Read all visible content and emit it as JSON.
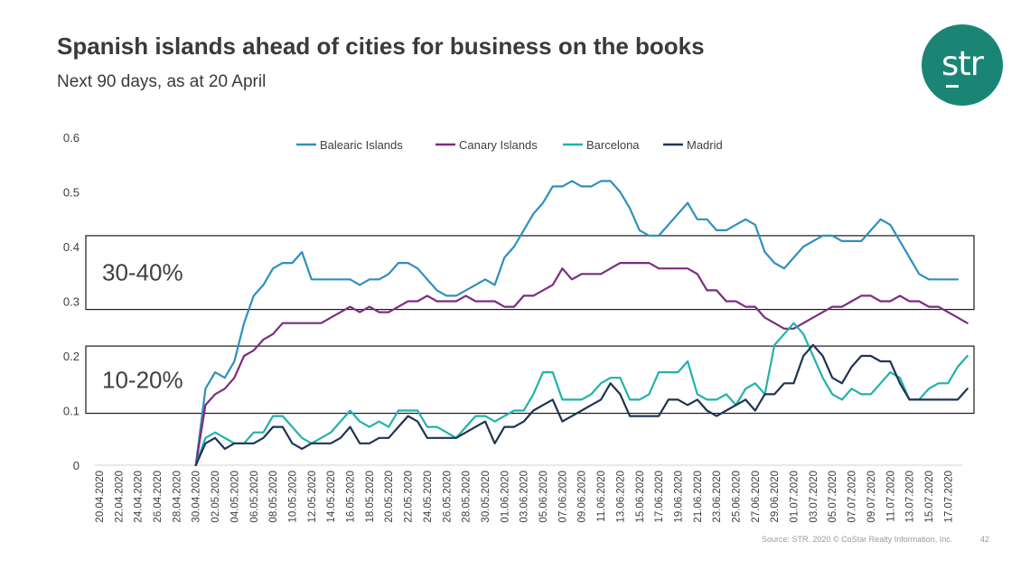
{
  "slide": {
    "title": "Spanish islands ahead of cities for business on the books",
    "subtitle": "Next 90 days, as at 20 April",
    "source": "Source: STR. 2020 © CoStar Realty Information, Inc.",
    "page_number": "42",
    "logo_text": "str",
    "logo_color": "#1a8575"
  },
  "chart_data": {
    "type": "line",
    "title": "Spanish islands ahead of cities for business on the books",
    "xlabel": "",
    "ylabel": "",
    "ylim": [
      0,
      0.6
    ],
    "yticks": [
      "0",
      "0.1",
      "0.2",
      "0.3",
      "0.4",
      "0.5",
      "0.6"
    ],
    "grid": false,
    "legend_position": "top",
    "x_labels": [
      "20.04.2020",
      "22.04.2020",
      "24.04.2020",
      "26.04.2020",
      "28.04.2020",
      "30.04.2020",
      "02.05.2020",
      "04.05.2020",
      "06.05.2020",
      "08.05.2020",
      "10.05.2020",
      "12.05.2020",
      "14.05.2020",
      "16.05.2020",
      "18.05.2020",
      "20.05.2020",
      "22.05.2020",
      "24.05.2020",
      "26.05.2020",
      "28.05.2020",
      "30.05.2020",
      "01.06.2020",
      "03.06.2020",
      "05.06.2020",
      "07.06.2020",
      "09.06.2020",
      "11.06.2020",
      "13.06.2020",
      "15.06.2020",
      "17.06.2020",
      "19.06.2020",
      "21.06.2020",
      "23.06.2020",
      "25.06.2020",
      "27.06.2020",
      "29.06.2020",
      "01.07.2020",
      "03.07.2020",
      "05.07.2020",
      "07.07.2020",
      "09.07.2020",
      "11.07.2020",
      "13.07.2020",
      "15.07.2020",
      "17.07.2020"
    ],
    "series": [
      {
        "name": "Balearic Islands",
        "color": "#2f8fbf",
        "values": [
          null,
          null,
          null,
          null,
          null,
          null,
          null,
          null,
          null,
          null,
          0,
          0.14,
          0.17,
          0.16,
          0.19,
          0.26,
          0.31,
          0.33,
          0.36,
          0.37,
          0.37,
          0.39,
          0.34,
          0.34,
          0.34,
          0.34,
          0.34,
          0.33,
          0.34,
          0.34,
          0.35,
          0.37,
          0.37,
          0.36,
          0.34,
          0.32,
          0.31,
          0.31,
          0.32,
          0.33,
          0.34,
          0.33,
          0.38,
          0.4,
          0.43,
          0.46,
          0.48,
          0.51,
          0.51,
          0.52,
          0.51,
          0.51,
          0.52,
          0.52,
          0.5,
          0.47,
          0.43,
          0.42,
          0.42,
          0.44,
          0.46,
          0.48,
          0.45,
          0.45,
          0.43,
          0.43,
          0.44,
          0.45,
          0.44,
          0.39,
          0.37,
          0.36,
          0.38,
          0.4,
          0.41,
          0.42,
          0.42,
          0.41,
          0.41,
          0.41,
          0.43,
          0.45,
          0.44,
          0.41,
          0.38,
          0.35,
          0.34,
          0.34,
          0.34,
          0.34
        ]
      },
      {
        "name": "Canary Islands",
        "color": "#7b2d7f",
        "values": [
          null,
          null,
          null,
          null,
          null,
          null,
          null,
          null,
          null,
          null,
          0,
          0.11,
          0.13,
          0.14,
          0.16,
          0.2,
          0.21,
          0.23,
          0.24,
          0.26,
          0.26,
          0.26,
          0.26,
          0.26,
          0.27,
          0.28,
          0.29,
          0.28,
          0.29,
          0.28,
          0.28,
          0.29,
          0.3,
          0.3,
          0.31,
          0.3,
          0.3,
          0.3,
          0.31,
          0.3,
          0.3,
          0.3,
          0.29,
          0.29,
          0.31,
          0.31,
          0.32,
          0.33,
          0.36,
          0.34,
          0.35,
          0.35,
          0.35,
          0.36,
          0.37,
          0.37,
          0.37,
          0.37,
          0.36,
          0.36,
          0.36,
          0.36,
          0.35,
          0.32,
          0.32,
          0.3,
          0.3,
          0.29,
          0.29,
          0.27,
          0.26,
          0.25,
          0.25,
          0.26,
          0.27,
          0.28,
          0.29,
          0.29,
          0.3,
          0.31,
          0.31,
          0.3,
          0.3,
          0.31,
          0.3,
          0.3,
          0.29,
          0.29,
          0.28,
          0.27,
          0.26
        ]
      },
      {
        "name": "Barcelona",
        "color": "#20b2aa",
        "values": [
          null,
          null,
          null,
          null,
          null,
          null,
          null,
          null,
          null,
          null,
          0,
          0.05,
          0.06,
          0.05,
          0.04,
          0.04,
          0.06,
          0.06,
          0.09,
          0.09,
          0.07,
          0.05,
          0.04,
          0.05,
          0.06,
          0.08,
          0.1,
          0.08,
          0.07,
          0.08,
          0.07,
          0.1,
          0.1,
          0.1,
          0.07,
          0.07,
          0.06,
          0.05,
          0.07,
          0.09,
          0.09,
          0.08,
          0.09,
          0.1,
          0.1,
          0.13,
          0.17,
          0.17,
          0.12,
          0.12,
          0.12,
          0.13,
          0.15,
          0.16,
          0.16,
          0.12,
          0.12,
          0.13,
          0.17,
          0.17,
          0.17,
          0.19,
          0.13,
          0.12,
          0.12,
          0.13,
          0.11,
          0.14,
          0.15,
          0.13,
          0.22,
          0.24,
          0.26,
          0.24,
          0.2,
          0.16,
          0.13,
          0.12,
          0.14,
          0.13,
          0.13,
          0.15,
          0.17,
          0.16,
          0.12,
          0.12,
          0.14,
          0.15,
          0.15,
          0.18,
          0.2
        ]
      },
      {
        "name": "Madrid",
        "color": "#1f3354",
        "values": [
          null,
          null,
          null,
          null,
          null,
          null,
          null,
          null,
          null,
          null,
          0,
          0.04,
          0.05,
          0.03,
          0.04,
          0.04,
          0.04,
          0.05,
          0.07,
          0.07,
          0.04,
          0.03,
          0.04,
          0.04,
          0.04,
          0.05,
          0.07,
          0.04,
          0.04,
          0.05,
          0.05,
          0.07,
          0.09,
          0.08,
          0.05,
          0.05,
          0.05,
          0.05,
          0.06,
          0.07,
          0.08,
          0.04,
          0.07,
          0.07,
          0.08,
          0.1,
          0.11,
          0.12,
          0.08,
          0.09,
          0.1,
          0.11,
          0.12,
          0.15,
          0.13,
          0.09,
          0.09,
          0.09,
          0.09,
          0.12,
          0.12,
          0.11,
          0.12,
          0.1,
          0.09,
          0.1,
          0.11,
          0.12,
          0.1,
          0.13,
          0.13,
          0.15,
          0.15,
          0.2,
          0.22,
          0.2,
          0.16,
          0.15,
          0.18,
          0.2,
          0.2,
          0.19,
          0.19,
          0.15,
          0.12,
          0.12,
          0.12,
          0.12,
          0.12,
          0.12,
          0.14
        ]
      }
    ],
    "annotations": [
      {
        "label": "30-40%",
        "range": [
          0.285,
          0.42
        ]
      },
      {
        "label": "10-20%",
        "range": [
          0.095,
          0.218
        ]
      }
    ]
  }
}
